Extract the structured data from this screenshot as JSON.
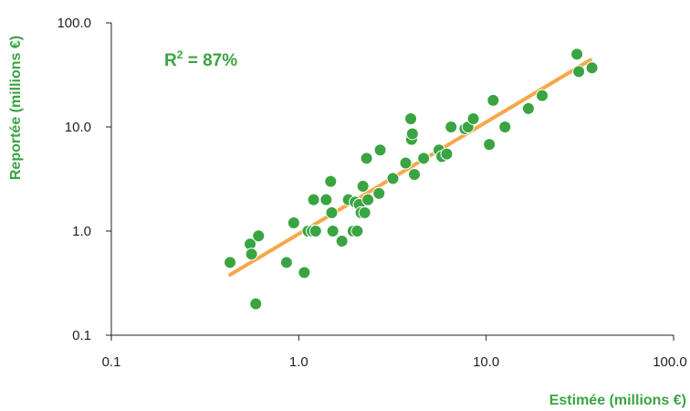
{
  "chart_data": {
    "type": "scatter",
    "xlabel": "Estimée (millions €)",
    "ylabel": "Reportée (millions €)",
    "annotation": {
      "prefix": "R",
      "sup": "2",
      "suffix": " = 87%"
    },
    "x_scale": "log",
    "y_scale": "log",
    "xlim": [
      0.1,
      100
    ],
    "ylim": [
      0.1,
      100
    ],
    "x_ticks": [
      "0.1",
      "1.0",
      "10.0",
      "100.0"
    ],
    "y_ticks": [
      "0.1",
      "1.0",
      "10.0",
      "100.0"
    ],
    "grid": false,
    "colors": {
      "points": "#3aa442",
      "trendline": "#f5a84a",
      "axis_title": "#3aa442",
      "axis": "#231f20"
    },
    "trendline": {
      "x": [
        0.43,
        36
      ],
      "y": [
        0.38,
        44
      ]
    },
    "points": {
      "x": [
        0.43,
        0.55,
        0.56,
        0.59,
        0.61,
        0.86,
        0.94,
        1.07,
        1.12,
        1.18,
        1.2,
        1.23,
        1.4,
        1.48,
        1.5,
        1.52,
        1.7,
        1.84,
        1.95,
        2.0,
        2.05,
        2.1,
        2.15,
        2.2,
        2.25,
        2.3,
        2.34,
        2.68,
        2.72,
        3.18,
        3.72,
        3.96,
        4.0,
        4.04,
        4.14,
        4.64,
        5.6,
        5.8,
        6.16,
        6.5,
        7.7,
        8.0,
        8.54,
        10.4,
        10.9,
        12.6,
        16.8,
        19.9,
        30.5,
        31.2,
        36.7
      ],
      "y": [
        0.5,
        0.75,
        0.6,
        0.2,
        0.9,
        0.5,
        1.2,
        0.4,
        1.0,
        1.0,
        2.0,
        1.0,
        2.0,
        3.0,
        1.5,
        1.0,
        0.8,
        2.0,
        1.0,
        1.9,
        1.0,
        1.8,
        1.5,
        2.7,
        1.5,
        5.0,
        2.0,
        2.3,
        6.0,
        3.2,
        4.5,
        12.0,
        7.6,
        8.6,
        3.5,
        5.0,
        6.0,
        5.2,
        5.5,
        10.0,
        9.6,
        10.0,
        12.0,
        6.8,
        18.0,
        10.0,
        15.0,
        20.0,
        50.0,
        34.0,
        37.0
      ]
    }
  }
}
